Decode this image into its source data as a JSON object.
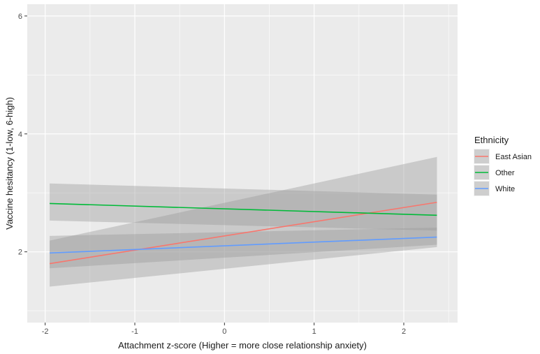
{
  "chart_data": {
    "type": "line",
    "xlabel": "Attachment z-score (Higher = more close relationship anxiety)",
    "ylabel": "Vaccine hesitancy (1-low, 6-high)",
    "xlim": [
      -2.2,
      2.6
    ],
    "ylim": [
      0.8,
      6.2
    ],
    "x_ticks": [
      -2,
      -1,
      0,
      1,
      2
    ],
    "x_tick_labels": [
      "-2",
      "-1",
      "0",
      "1",
      "2"
    ],
    "y_ticks": [
      2,
      4,
      6
    ],
    "y_tick_labels": [
      "2",
      "4",
      "6"
    ],
    "grid": true,
    "legend": {
      "title": "Ethnicity",
      "position": "right"
    },
    "series": [
      {
        "name": "East Asian",
        "color": "#F8766D",
        "x": [
          -1.95,
          2.37
        ],
        "y": [
          1.8,
          2.84
        ],
        "lower": [
          1.41,
          2.08
        ],
        "upper": [
          2.19,
          3.61
        ]
      },
      {
        "name": "Other",
        "color": "#00BA38",
        "x": [
          -1.95,
          2.37
        ],
        "y": [
          2.82,
          2.62
        ],
        "lower": [
          2.53,
          2.36
        ],
        "upper": [
          3.16,
          2.97
        ]
      },
      {
        "name": "White",
        "color": "#619CFF",
        "x": [
          -1.95,
          2.37
        ],
        "y": [
          1.98,
          2.25
        ],
        "lower": [
          1.72,
          2.12
        ],
        "upper": [
          2.27,
          2.41
        ]
      }
    ]
  }
}
